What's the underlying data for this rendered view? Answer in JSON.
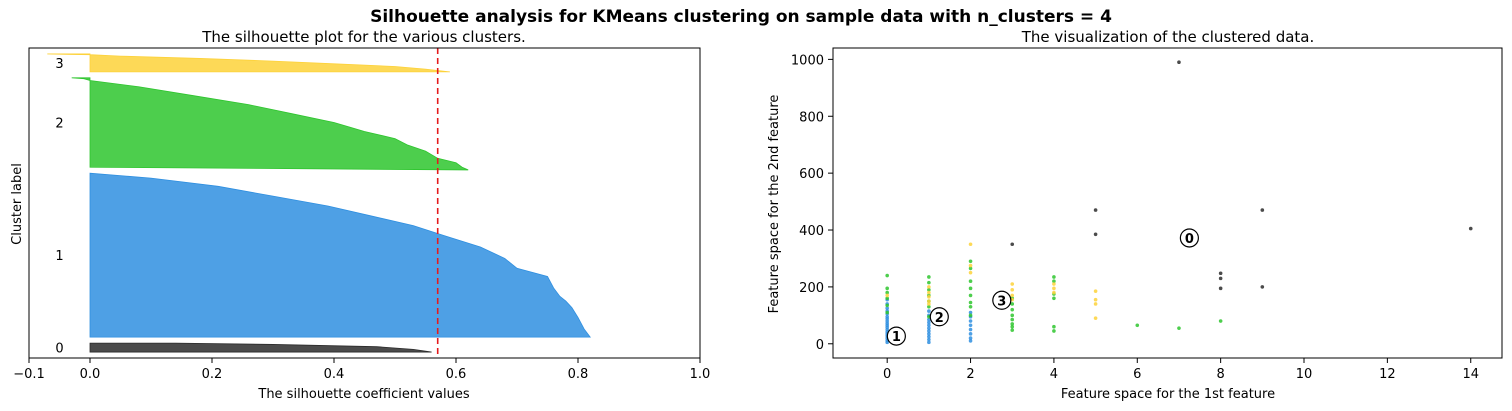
{
  "suptitle": "Silhouette analysis for KMeans clustering on sample data with n_clusters = 4",
  "colors": {
    "cluster_0": "#2b2b2b",
    "cluster_1": "#2f8fe0",
    "cluster_2": "#2ec52e",
    "cluster_3": "#fdd23a",
    "average_line": "#e41a1c"
  },
  "chart_data": [
    {
      "type": "area",
      "title": "The silhouette plot for the various clusters.",
      "xlabel": "The silhouette coefficient values",
      "ylabel": "Cluster label",
      "xlim": [
        -0.1,
        1.0
      ],
      "xticks": [
        -0.1,
        0.0,
        0.2,
        0.4,
        0.6,
        0.8,
        1.0
      ],
      "xtick_labels": [
        "−0.1",
        "0.0",
        "0.2",
        "0.4",
        "0.6",
        "0.8",
        "1.0"
      ],
      "ylim": [
        0,
        520
      ],
      "average_silhouette": 0.57,
      "clusters": [
        {
          "label": "0",
          "y_start": 10,
          "y_end": 25,
          "profile": [
            [
              0.0,
              0.56
            ],
            [
              0.3,
              0.53
            ],
            [
              0.6,
              0.47
            ],
            [
              0.85,
              0.3
            ],
            [
              1.0,
              0.14
            ]
          ]
        },
        {
          "label": "1",
          "y_start": 35,
          "y_end": 310,
          "profile": [
            [
              0.0,
              0.82
            ],
            [
              0.05,
              0.81
            ],
            [
              0.12,
              0.8
            ],
            [
              0.18,
              0.79
            ],
            [
              0.22,
              0.78
            ],
            [
              0.25,
              0.77
            ],
            [
              0.3,
              0.76
            ],
            [
              0.37,
              0.75
            ],
            [
              0.42,
              0.7
            ],
            [
              0.48,
              0.68
            ],
            [
              0.55,
              0.64
            ],
            [
              0.62,
              0.58
            ],
            [
              0.68,
              0.53
            ],
            [
              0.74,
              0.46
            ],
            [
              0.8,
              0.39
            ],
            [
              0.86,
              0.3
            ],
            [
              0.92,
              0.21
            ],
            [
              0.97,
              0.1
            ],
            [
              1.0,
              0.0
            ]
          ]
        },
        {
          "label": "2",
          "y_start": 320,
          "y_end": 470,
          "profile": [
            [
              -0.03,
              0.62
            ],
            [
              0.0,
              0.61
            ],
            [
              0.05,
              0.6
            ],
            [
              0.1,
              0.57
            ],
            [
              0.18,
              0.55
            ],
            [
              0.25,
              0.52
            ],
            [
              0.32,
              0.5
            ],
            [
              0.4,
              0.45
            ],
            [
              0.5,
              0.4
            ],
            [
              0.6,
              0.33
            ],
            [
              0.7,
              0.26
            ],
            [
              0.8,
              0.17
            ],
            [
              0.9,
              0.08
            ],
            [
              0.97,
              0.0
            ],
            [
              0.99,
              -0.01
            ],
            [
              1.0,
              -0.03
            ]
          ]
        },
        {
          "label": "3",
          "y_start": 480,
          "y_end": 510,
          "profile": [
            [
              0.0,
              0.59
            ],
            [
              0.15,
              0.55
            ],
            [
              0.3,
              0.5
            ],
            [
              0.45,
              0.4
            ],
            [
              0.6,
              0.3
            ],
            [
              0.75,
              0.18
            ],
            [
              0.88,
              0.05
            ],
            [
              0.96,
              0.0
            ],
            [
              0.97,
              -0.03
            ],
            [
              1.0,
              -0.07
            ]
          ]
        }
      ]
    },
    {
      "type": "scatter",
      "title": "The visualization of the clustered data.",
      "xlabel": "Feature space for the 1st feature",
      "ylabel": "Feature space for the 2nd feature",
      "xlim": [
        -1.3,
        14.75
      ],
      "ylim": [
        -50,
        1040
      ],
      "xticks": [
        0,
        2,
        4,
        6,
        8,
        10,
        12,
        14
      ],
      "yticks": [
        0,
        200,
        400,
        600,
        800,
        1000
      ],
      "series": [
        {
          "cluster": 0,
          "points": [
            [
              7,
              990
            ],
            [
              3,
              350
            ],
            [
              5,
              470
            ],
            [
              5,
              385
            ],
            [
              8,
              248
            ],
            [
              8,
              230
            ],
            [
              8,
              195
            ],
            [
              9,
              470
            ],
            [
              9,
              200
            ],
            [
              14,
              405
            ]
          ]
        },
        {
          "cluster": 1,
          "points": [
            [
              0,
              5
            ],
            [
              0,
              12
            ],
            [
              0,
              20
            ],
            [
              0,
              28
            ],
            [
              0,
              35
            ],
            [
              0,
              42
            ],
            [
              0,
              50
            ],
            [
              0,
              58
            ],
            [
              0,
              65
            ],
            [
              0,
              72
            ],
            [
              0,
              80
            ],
            [
              0,
              88
            ],
            [
              0,
              95
            ],
            [
              0,
              105
            ],
            [
              0,
              115
            ],
            [
              0,
              125
            ],
            [
              0,
              140
            ],
            [
              0,
              155
            ],
            [
              1,
              5
            ],
            [
              1,
              15
            ],
            [
              1,
              25
            ],
            [
              1,
              35
            ],
            [
              1,
              45
            ],
            [
              1,
              55
            ],
            [
              1,
              65
            ],
            [
              1,
              75
            ],
            [
              1,
              85
            ],
            [
              1,
              100
            ],
            [
              1,
              115
            ],
            [
              2,
              10
            ],
            [
              2,
              20
            ],
            [
              2,
              35
            ],
            [
              2,
              50
            ],
            [
              2,
              65
            ],
            [
              2,
              80
            ],
            [
              2,
              95
            ],
            [
              2,
              110
            ]
          ]
        },
        {
          "cluster": 2,
          "points": [
            [
              0,
              240
            ],
            [
              0,
              195
            ],
            [
              0,
              180
            ],
            [
              0,
              160
            ],
            [
              0,
              135
            ],
            [
              0,
              110
            ],
            [
              1,
              235
            ],
            [
              1,
              215
            ],
            [
              1,
              190
            ],
            [
              1,
              170
            ],
            [
              1,
              150
            ],
            [
              1,
              130
            ],
            [
              1,
              95
            ],
            [
              2,
              290
            ],
            [
              2,
              265
            ],
            [
              2,
              220
            ],
            [
              2,
              195
            ],
            [
              2,
              170
            ],
            [
              2,
              145
            ],
            [
              2,
              130
            ],
            [
              2,
              100
            ],
            [
              3,
              160
            ],
            [
              3,
              140
            ],
            [
              3,
              120
            ],
            [
              3,
              100
            ],
            [
              3,
              85
            ],
            [
              3,
              70
            ],
            [
              3,
              60
            ],
            [
              3,
              48
            ],
            [
              4,
              235
            ],
            [
              4,
              220
            ],
            [
              4,
              175
            ],
            [
              4,
              160
            ],
            [
              4,
              60
            ],
            [
              4,
              45
            ],
            [
              6,
              65
            ],
            [
              7,
              55
            ],
            [
              8,
              80
            ]
          ]
        },
        {
          "cluster": 3,
          "points": [
            [
              0,
              170
            ],
            [
              1,
              200
            ],
            [
              1,
              180
            ],
            [
              1,
              165
            ],
            [
              1,
              150
            ],
            [
              1,
              140
            ],
            [
              2,
              350
            ],
            [
              2,
              275
            ],
            [
              2,
              250
            ],
            [
              3,
              210
            ],
            [
              3,
              190
            ],
            [
              3,
              170
            ],
            [
              3,
              155
            ],
            [
              4,
              210
            ],
            [
              4,
              195
            ],
            [
              4,
              180
            ],
            [
              5,
              185
            ],
            [
              5,
              155
            ],
            [
              5,
              140
            ],
            [
              5,
              90
            ]
          ]
        }
      ],
      "centers": [
        {
          "label": "0",
          "x": 7.25,
          "y": 372
        },
        {
          "label": "1",
          "x": 0.22,
          "y": 27
        },
        {
          "label": "2",
          "x": 1.25,
          "y": 95
        },
        {
          "label": "3",
          "x": 2.75,
          "y": 153
        }
      ]
    }
  ]
}
